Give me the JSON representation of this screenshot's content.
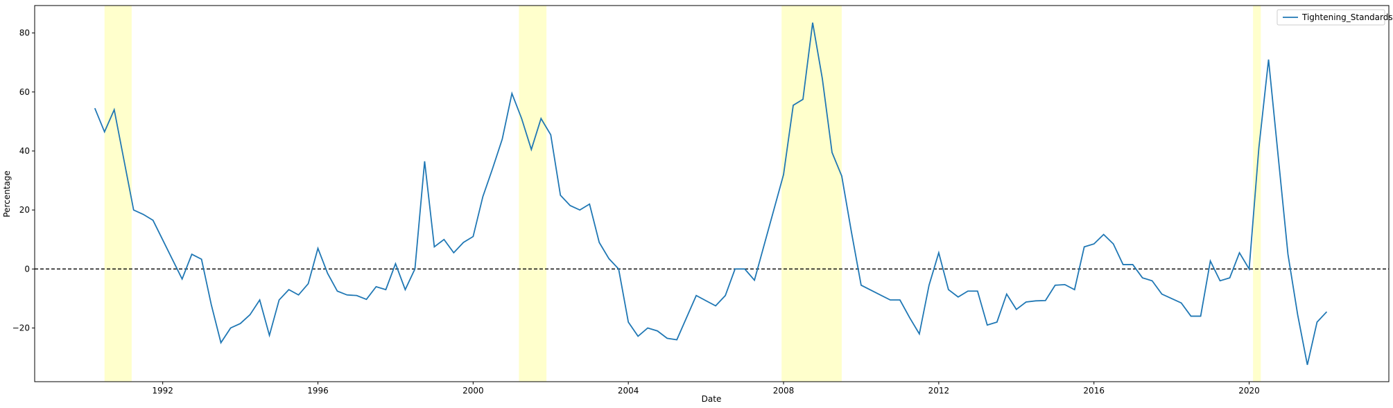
{
  "chart_data": {
    "type": "line",
    "xlabel": "Date",
    "ylabel": "Percentage",
    "x": [
      1990.25,
      1990.5,
      1990.75,
      1991.0,
      1991.25,
      1991.5,
      1991.75,
      1992.5,
      1992.75,
      1993.0,
      1993.25,
      1993.5,
      1993.75,
      1994.0,
      1994.25,
      1994.5,
      1994.75,
      1995.0,
      1995.25,
      1995.5,
      1995.75,
      1996.0,
      1996.25,
      1996.5,
      1996.75,
      1997.0,
      1997.25,
      1997.5,
      1997.75,
      1998.0,
      1998.25,
      1998.5,
      1998.75,
      1999.0,
      1999.25,
      1999.5,
      1999.75,
      2000.0,
      2000.25,
      2000.5,
      2000.75,
      2001.0,
      2001.25,
      2001.5,
      2001.75,
      2002.0,
      2002.25,
      2002.5,
      2002.75,
      2003.0,
      2003.25,
      2003.5,
      2003.75,
      2004.0,
      2004.25,
      2004.5,
      2004.75,
      2005.0,
      2005.25,
      2005.75,
      2006.25,
      2006.5,
      2006.75,
      2007.0,
      2007.25,
      2008.0,
      2008.25,
      2008.5,
      2008.75,
      2009.0,
      2009.25,
      2009.5,
      2009.75,
      2010.0,
      2010.75,
      2011.0,
      2011.25,
      2011.5,
      2011.75,
      2012.0,
      2012.25,
      2012.5,
      2012.75,
      2013.0,
      2013.25,
      2013.5,
      2013.75,
      2014.0,
      2014.25,
      2014.5,
      2014.75,
      2015.0,
      2015.25,
      2015.5,
      2015.75,
      2016.0,
      2016.25,
      2016.5,
      2016.75,
      2017.0,
      2017.25,
      2017.5,
      2017.75,
      2018.0,
      2018.25,
      2018.5,
      2018.75,
      2019.0,
      2019.25,
      2019.5,
      2019.75,
      2020.0,
      2020.25,
      2020.5,
      2020.75,
      2021.0,
      2021.25,
      2021.5,
      2021.75,
      2022.0
    ],
    "series": [
      {
        "name": "Tightening_Standards",
        "color": "#1f77b4",
        "values": [
          54.5,
          46.5,
          54,
          37,
          20,
          18.5,
          16.5,
          -3.4,
          5,
          3.3,
          -12,
          -25,
          -20,
          -18.5,
          -15.5,
          -10.5,
          -22.5,
          -10.5,
          -7,
          -8.8,
          -5,
          7,
          -1.5,
          -7.5,
          -8.8,
          -9,
          -10.3,
          -6,
          -7,
          1.8,
          -7,
          0,
          36.5,
          7.5,
          10,
          5.5,
          9,
          11,
          24.5,
          34,
          44,
          59.5,
          51,
          40.5,
          51,
          45.5,
          25,
          21.5,
          20,
          22,
          9,
          3.5,
          0,
          -18,
          -22.8,
          -20,
          -21,
          -23.5,
          -24,
          -9,
          -12.5,
          -9,
          0,
          0,
          -3.8,
          32,
          55.5,
          57.5,
          83.5,
          64.5,
          39.5,
          31.5,
          12.5,
          -5.5,
          -10.5,
          -10.5,
          -16.5,
          -22,
          -5.5,
          5.5,
          -7,
          -9.5,
          -7.5,
          -7.5,
          -19,
          -18,
          -8.5,
          -13.7,
          -11.2,
          -10.8,
          -10.7,
          -5.5,
          -5.3,
          -7,
          7.5,
          8.5,
          11.7,
          8.5,
          1.5,
          1.5,
          -3,
          -4,
          -8.5,
          -10,
          -11.5,
          -16,
          -16,
          2.7,
          -4,
          -3,
          5.5,
          0,
          41,
          71,
          38,
          5,
          -15.5,
          -32.5,
          -18,
          -14.5
        ]
      }
    ],
    "shaded_regions": [
      [
        1990.5,
        1991.2
      ],
      [
        2001.18,
        2001.89
      ],
      [
        2007.95,
        2009.5
      ],
      [
        2020.1,
        2020.3
      ]
    ],
    "shade_color": "#ffffcc",
    "reference_line": 0,
    "xlim": [
      1988.7,
      2023.6
    ],
    "ylim": [
      -38.2,
      89.3
    ],
    "xticks": [
      1992,
      1996,
      2000,
      2004,
      2008,
      2012,
      2016,
      2020
    ],
    "yticks": [
      {
        "value": -20,
        "label": "−20"
      },
      0,
      20,
      40,
      60,
      80
    ],
    "legend": "upper right"
  }
}
